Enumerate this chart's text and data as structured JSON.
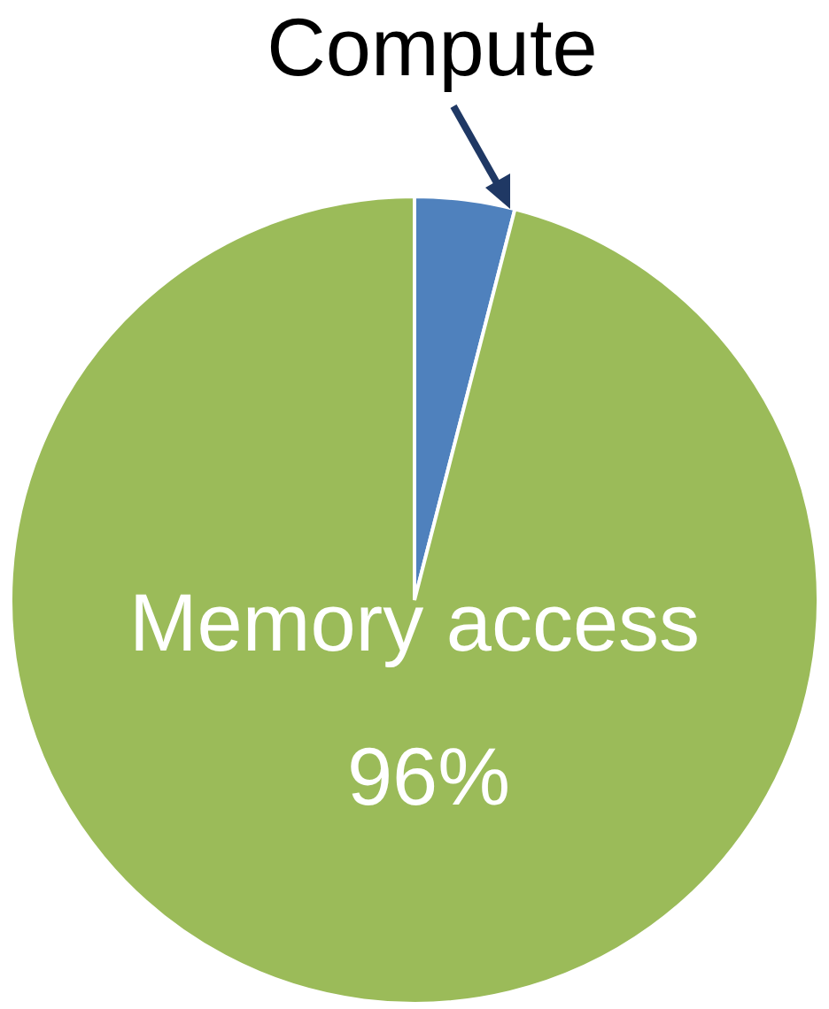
{
  "chart_data": {
    "type": "pie",
    "categories": [
      "Compute",
      "Memory access"
    ],
    "values": [
      4,
      96
    ],
    "colors": [
      "#4f81bd",
      "#9bbb59"
    ],
    "value_labels": [
      null,
      "96%"
    ],
    "legend": false
  }
}
